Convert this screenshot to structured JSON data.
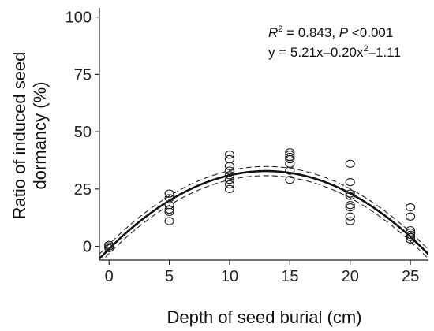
{
  "chart_data": {
    "type": "scatter",
    "xlabel": "Depth of seed burial (cm)",
    "ylabel": "Ratio of induced seed dormancy (%)",
    "ylabel_lines": [
      "Ratio of induced seed",
      "dormancy (%)"
    ],
    "x_ticks": [
      0,
      5,
      10,
      15,
      20,
      25
    ],
    "y_ticks": [
      0,
      25,
      50,
      75,
      100
    ],
    "xlim": [
      -0.8,
      26.5
    ],
    "ylim": [
      -6,
      104
    ],
    "grid": false,
    "annotation": {
      "r2_label": "R",
      "r2_sup": "2",
      "r2_value": " = 0.843, ",
      "p_label": "P",
      "p_value": " <0.001",
      "eq_prefix": "y = 5.21x–0.20x",
      "eq_sup": "2",
      "eq_suffix": "–1.11"
    },
    "fit": {
      "a": -0.2,
      "b": 5.21,
      "c": -1.11,
      "ci_offset": 2.0
    },
    "points": [
      {
        "x": 0,
        "y": 0
      },
      {
        "x": 0,
        "y": -0.8
      },
      {
        "x": 0,
        "y": 0.6
      },
      {
        "x": 5,
        "y": 11
      },
      {
        "x": 5,
        "y": 15
      },
      {
        "x": 5,
        "y": 16
      },
      {
        "x": 5,
        "y": 18
      },
      {
        "x": 5,
        "y": 21
      },
      {
        "x": 5,
        "y": 23
      },
      {
        "x": 10,
        "y": 25
      },
      {
        "x": 10,
        "y": 27
      },
      {
        "x": 10,
        "y": 29
      },
      {
        "x": 10,
        "y": 31
      },
      {
        "x": 10,
        "y": 33
      },
      {
        "x": 10,
        "y": 35
      },
      {
        "x": 10,
        "y": 38
      },
      {
        "x": 10,
        "y": 40
      },
      {
        "x": 15,
        "y": 29
      },
      {
        "x": 15,
        "y": 33
      },
      {
        "x": 15,
        "y": 36
      },
      {
        "x": 15,
        "y": 38
      },
      {
        "x": 15,
        "y": 39
      },
      {
        "x": 15,
        "y": 40
      },
      {
        "x": 15,
        "y": 41
      },
      {
        "x": 20,
        "y": 11
      },
      {
        "x": 20,
        "y": 13
      },
      {
        "x": 20,
        "y": 17
      },
      {
        "x": 20,
        "y": 18
      },
      {
        "x": 20,
        "y": 22
      },
      {
        "x": 20,
        "y": 23
      },
      {
        "x": 20,
        "y": 28
      },
      {
        "x": 20,
        "y": 36
      },
      {
        "x": 25,
        "y": 3
      },
      {
        "x": 25,
        "y": 4
      },
      {
        "x": 25,
        "y": 5
      },
      {
        "x": 25,
        "y": 6
      },
      {
        "x": 25,
        "y": 7
      },
      {
        "x": 25,
        "y": 13
      },
      {
        "x": 25,
        "y": 17
      }
    ]
  }
}
